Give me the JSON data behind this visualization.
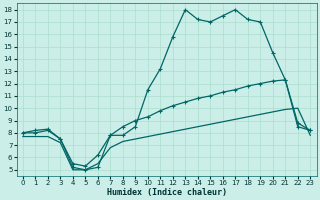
{
  "xlabel": "Humidex (Indice chaleur)",
  "bg_color": "#cceee8",
  "line_color": "#006666",
  "grid_color": "#aaddcc",
  "xlim": [
    -0.5,
    23.5
  ],
  "ylim": [
    4.5,
    18.5
  ],
  "xticks": [
    0,
    1,
    2,
    3,
    4,
    5,
    6,
    7,
    8,
    9,
    10,
    11,
    12,
    13,
    14,
    15,
    16,
    17,
    18,
    19,
    20,
    21,
    22,
    23
  ],
  "yticks": [
    5,
    6,
    7,
    8,
    9,
    10,
    11,
    12,
    13,
    14,
    15,
    16,
    17,
    18
  ],
  "curve1_x": [
    0,
    1,
    2,
    3,
    4,
    5,
    6,
    7,
    8,
    9,
    10,
    11,
    12,
    13,
    14,
    15,
    16,
    17,
    18,
    19,
    20,
    21,
    22,
    23
  ],
  "curve1_y": [
    8.0,
    8.0,
    8.2,
    7.5,
    5.2,
    5.0,
    5.2,
    7.8,
    7.8,
    8.5,
    11.5,
    13.2,
    15.8,
    18.0,
    17.2,
    17.0,
    17.5,
    18.0,
    17.2,
    17.0,
    14.5,
    12.3,
    8.8,
    8.2
  ],
  "curve2_x": [
    0,
    1,
    2,
    3,
    4,
    5,
    6,
    7,
    8,
    9,
    10,
    11,
    12,
    13,
    14,
    15,
    16,
    17,
    18,
    19,
    20,
    21,
    22,
    23
  ],
  "curve2_y": [
    8.0,
    8.2,
    8.3,
    7.5,
    5.5,
    5.3,
    6.2,
    7.8,
    8.5,
    9.0,
    9.3,
    9.8,
    10.2,
    10.5,
    10.8,
    11.0,
    11.3,
    11.5,
    11.8,
    12.0,
    12.2,
    12.3,
    8.5,
    8.2
  ],
  "curve3_x": [
    0,
    1,
    2,
    3,
    4,
    5,
    6,
    7,
    8,
    9,
    10,
    11,
    12,
    13,
    14,
    15,
    16,
    17,
    18,
    19,
    20,
    21,
    22,
    23
  ],
  "curve3_y": [
    7.7,
    7.7,
    7.7,
    7.2,
    5.0,
    5.0,
    5.5,
    6.8,
    7.3,
    7.5,
    7.7,
    7.9,
    8.1,
    8.3,
    8.5,
    8.7,
    8.9,
    9.1,
    9.3,
    9.5,
    9.7,
    9.9,
    10.0,
    7.8
  ],
  "marker_size": 3.5,
  "line_width": 0.9
}
